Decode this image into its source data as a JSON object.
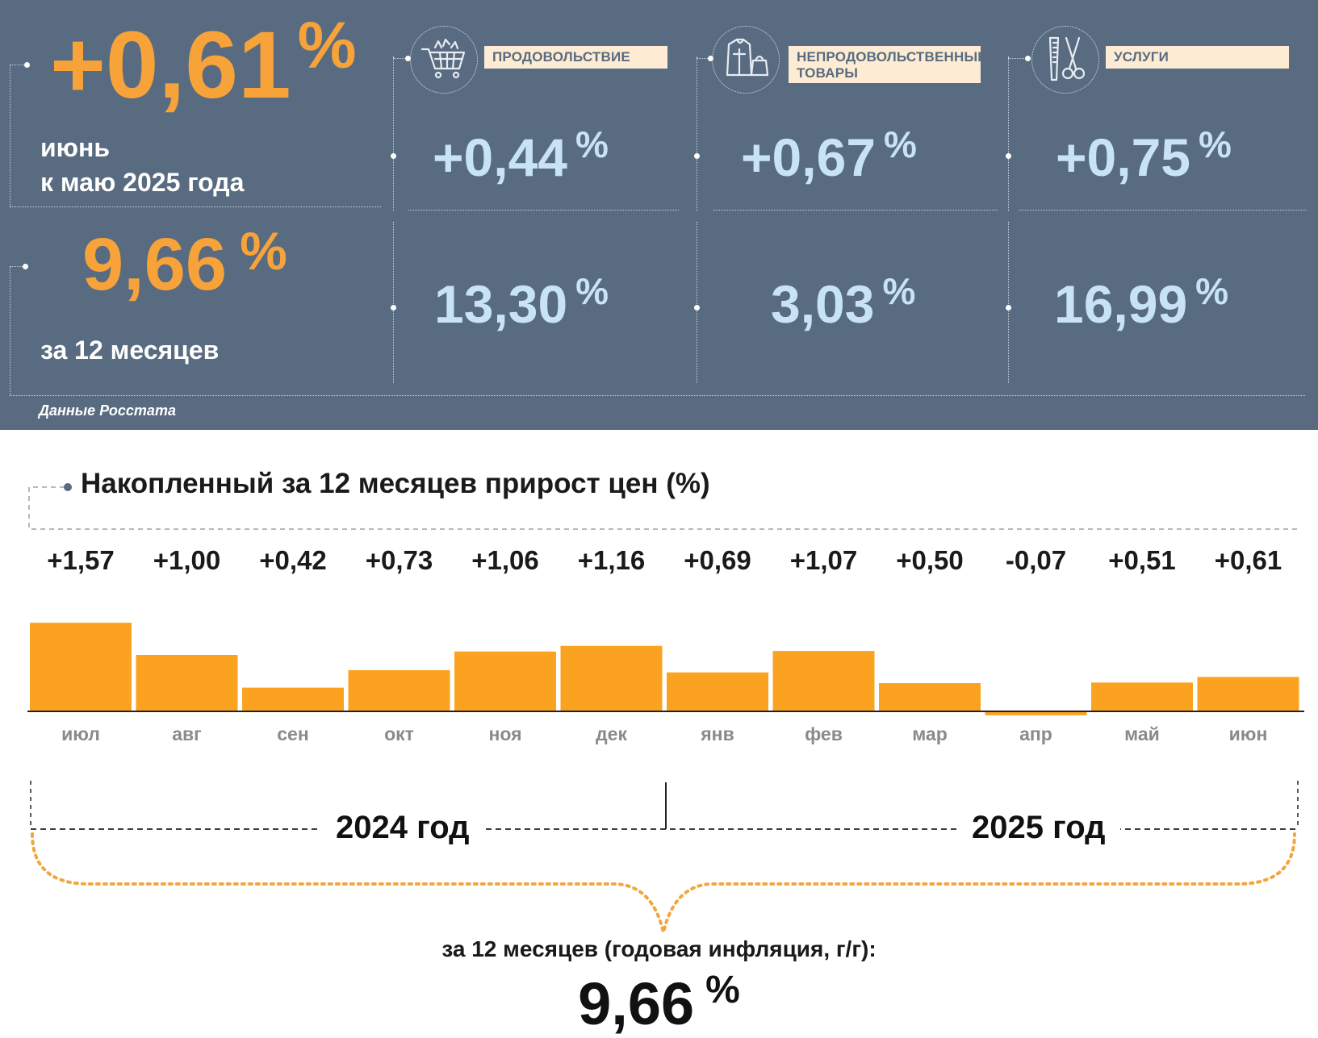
{
  "header": {
    "monthly_value": "+0,61",
    "monthly_unit": "%",
    "monthly_caption_line1": "июнь",
    "monthly_caption_line2": "к маю 2025 года",
    "annual_value": "9,66",
    "annual_unit": "%",
    "annual_caption": "за 12 месяцев",
    "source": "Данные Росстата"
  },
  "categories": [
    {
      "label_line1": "ПРОДОВОЛЬСТВИЕ",
      "label_line2": "",
      "icon": "shopping-cart-icon",
      "monthly": "+0,44",
      "annual": "13,30",
      "unit": "%"
    },
    {
      "label_line1": "НЕПРОДОВОЛЬСТВЕННЫЕ",
      "label_line2": "ТОВАРЫ",
      "icon": "clothes-bag-icon",
      "monthly": "+0,67",
      "annual": "3,03",
      "unit": "%"
    },
    {
      "label_line1": "УСЛУГИ",
      "label_line2": "",
      "icon": "comb-scissors-icon",
      "monthly": "+0,75",
      "annual": "16,99",
      "unit": "%"
    }
  ],
  "colors": {
    "panel": "#586b80",
    "accent_orange": "#f7a33a",
    "value_blue": "#c8e3f3",
    "bar": "#fba321"
  },
  "chart_data": {
    "type": "bar",
    "title": "Накопленный за 12 месяцев прирост цен (%)",
    "categories": [
      "июл",
      "авг",
      "сен",
      "окт",
      "ноя",
      "дек",
      "янв",
      "фев",
      "мар",
      "апр",
      "май",
      "июн"
    ],
    "values": [
      1.57,
      1.0,
      0.42,
      0.73,
      1.06,
      1.16,
      0.69,
      1.07,
      0.5,
      -0.07,
      0.51,
      0.61
    ],
    "value_labels": [
      "+1,57",
      "+1,00",
      "+0,42",
      "+0,73",
      "+1,06",
      "+1,16",
      "+0,69",
      "+1,07",
      "+0,50",
      "-0,07",
      "+0,51",
      "+0,61"
    ],
    "years": [
      "2024 год",
      "2025 год"
    ],
    "summary_label": "за 12 месяцев (годовая инфляция, г/г):",
    "summary_value": "9,66",
    "summary_unit": "%"
  }
}
